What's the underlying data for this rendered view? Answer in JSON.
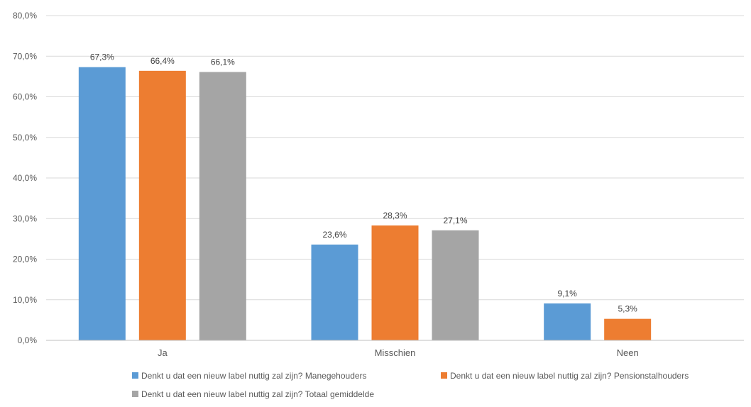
{
  "chart_data": {
    "type": "bar",
    "title": "",
    "xlabel": "",
    "ylabel": "",
    "ylim": [
      0,
      80
    ],
    "ytick_labels": [
      "0,0%",
      "10,0%",
      "20,0%",
      "30,0%",
      "40,0%",
      "50,0%",
      "60,0%",
      "70,0%",
      "80,0%"
    ],
    "grid": true,
    "legend_position": "bottom",
    "categories": [
      "Ja",
      "Misschien",
      "Neen"
    ],
    "series": [
      {
        "name": "Denkt u dat een nieuw label nuttig zal zijn? Manegehouders",
        "color": "#5B9BD5",
        "values": [
          67.3,
          23.6,
          9.1
        ],
        "labels": [
          "67,3%",
          "23,6%",
          "9,1%"
        ]
      },
      {
        "name": "Denkt u dat een nieuw label nuttig zal zijn? Pensionstalhouders",
        "color": "#ED7D31",
        "values": [
          66.4,
          28.3,
          5.3
        ],
        "labels": [
          "66,4%",
          "28,3%",
          "5,3%"
        ]
      },
      {
        "name": "Denkt u dat een nieuw label nuttig zal zijn? Totaal gemiddelde",
        "color": "#A5A5A5",
        "values": [
          66.1,
          27.1,
          null
        ],
        "labels": [
          "66,1%",
          "27,1%",
          null
        ]
      }
    ]
  }
}
